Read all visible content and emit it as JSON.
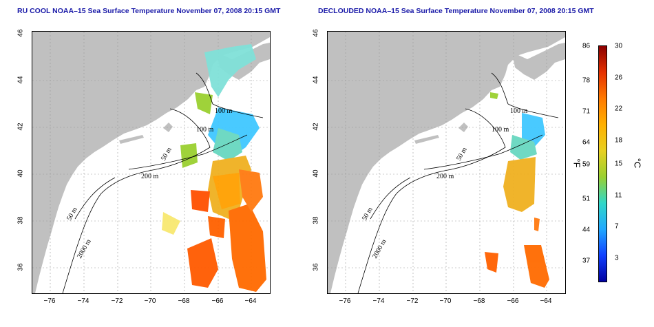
{
  "left_panel": {
    "title": "RU COOL NOAA–15 Sea Surface Temperature November 07, 2008 20:15 GMT"
  },
  "right_panel": {
    "title": "DECLOUDED NOAA–15 Sea Surface Temperature November 07, 2008 20:15 GMT"
  },
  "map": {
    "x_ticks": [
      "−76",
      "−74",
      "−72",
      "−70",
      "−68",
      "−66",
      "−64"
    ],
    "y_ticks": [
      "46",
      "44",
      "42",
      "40",
      "38",
      "36"
    ],
    "land_color": "#c0c0c0",
    "contour_labels": [
      "100 m",
      "100 m",
      "50 m",
      "200 m",
      "50 m",
      "2000 m"
    ]
  },
  "colorbar": {
    "fahrenheit_ticks": [
      "86",
      "78",
      "71",
      "64",
      "59",
      "51",
      "44",
      "37"
    ],
    "celsius_ticks": [
      "30",
      "26",
      "22",
      "18",
      "15",
      "11",
      "7",
      "3"
    ],
    "fahrenheit_unit": "°F",
    "celsius_unit": "°C",
    "colors": [
      "#8b0000",
      "#e53000",
      "#ff7a00",
      "#ffb000",
      "#e8d020",
      "#9ad030",
      "#30d8c8",
      "#20a8ff",
      "#1040ff",
      "#0000a0"
    ]
  }
}
